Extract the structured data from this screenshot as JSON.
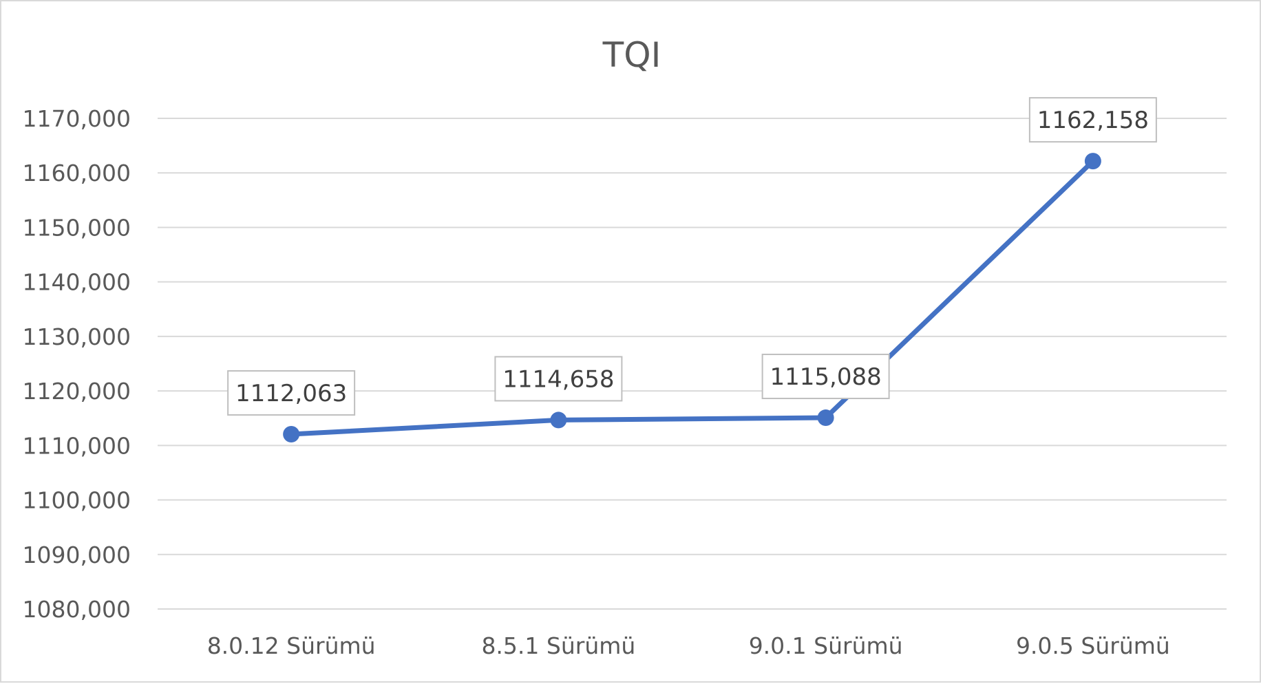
{
  "chart_data": {
    "type": "line",
    "title": "TQI",
    "categories": [
      "8.0.12 Sürümü",
      "8.5.1 Sürümü",
      "9.0.1 Sürümü",
      "9.0.5 Sürümü"
    ],
    "series": [
      {
        "values": [
          1112.063,
          1114.658,
          1115.088,
          1162.158
        ],
        "labels": [
          "1112,063",
          "1114,658",
          "1115,088",
          "1162,158"
        ],
        "color": "#4472c4"
      }
    ],
    "ylim": [
      1080,
      1170
    ],
    "yticks": [
      1080,
      1090,
      1100,
      1110,
      1120,
      1130,
      1140,
      1150,
      1160,
      1170
    ],
    "ytick_labels": [
      "1080,000",
      "1090,000",
      "1100,000",
      "1110,000",
      "1120,000",
      "1130,000",
      "1140,000",
      "1150,000",
      "1160,000",
      "1170,000"
    ],
    "grid": true,
    "legend": "none",
    "xlabel": "",
    "ylabel": ""
  }
}
